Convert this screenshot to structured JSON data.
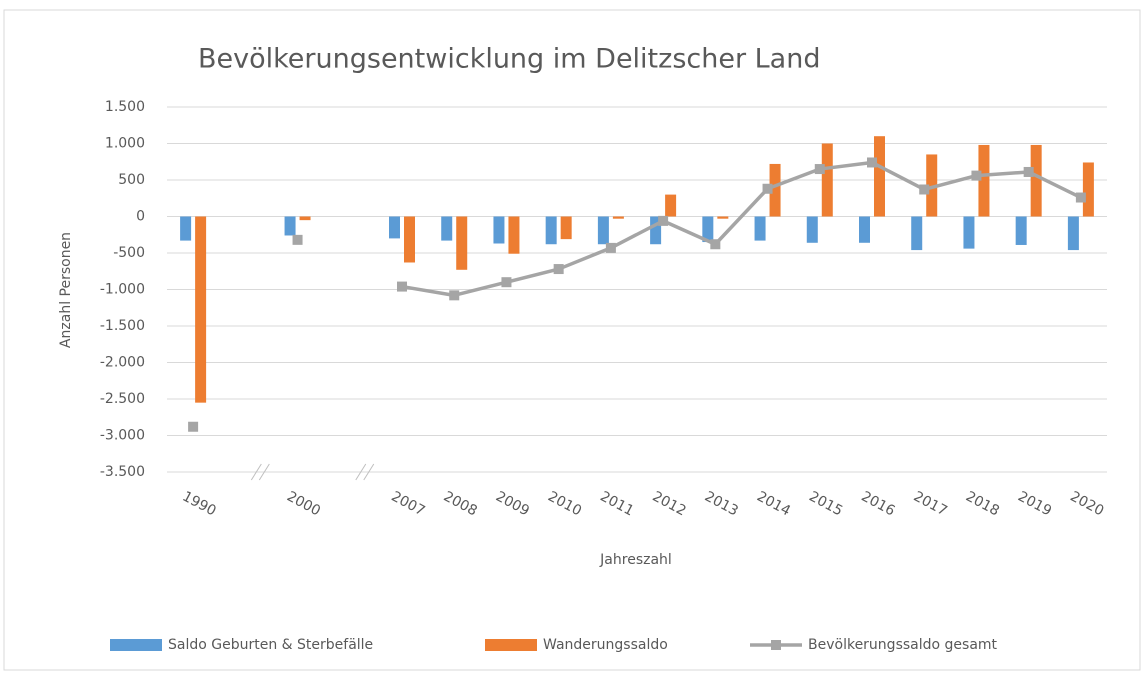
{
  "chart_data": {
    "type": "bar_line",
    "title": "Bevölkerungsentwicklung im Delitzscher Land",
    "x_label": "Jahreszahl",
    "y_label": "Anzahl Personen",
    "categories": [
      "1990",
      null,
      "2000",
      null,
      "2007",
      "2008",
      "2009",
      "2010",
      "2011",
      "2012",
      "2013",
      "2014",
      "2015",
      "2016",
      "2017",
      "2018",
      "2019",
      "2020"
    ],
    "series": [
      {
        "name": "Saldo Geburten & Sterbefälle",
        "type": "bar",
        "color": "#5b9bd5",
        "values": [
          -330,
          null,
          -260,
          null,
          -300,
          -330,
          -370,
          -380,
          -380,
          -380,
          -350,
          -330,
          -360,
          -360,
          -460,
          -440,
          -390,
          -460
        ]
      },
      {
        "name": "Wanderungssaldo",
        "type": "bar",
        "color": "#ed7d31",
        "values": [
          -2550,
          null,
          -50,
          null,
          -630,
          -730,
          -510,
          -310,
          -30,
          300,
          -30,
          720,
          1000,
          1100,
          850,
          980,
          980,
          740
        ]
      },
      {
        "name": "Bevölkerungssaldo gesamt",
        "type": "line",
        "color": "#a5a5a5",
        "values": [
          -2880,
          null,
          -320,
          null,
          -960,
          -1080,
          -900,
          -720,
          -430,
          -60,
          -380,
          380,
          650,
          740,
          370,
          560,
          610,
          260
        ]
      }
    ],
    "ylim": [
      -3500,
      1500
    ],
    "yticks": [
      {
        "value": -3500,
        "label": "-3.500"
      },
      {
        "value": -3000,
        "label": "-3.000"
      },
      {
        "value": -2500,
        "label": "-2.500"
      },
      {
        "value": -2000,
        "label": "-2.000"
      },
      {
        "value": -1500,
        "label": "-1.500"
      },
      {
        "value": -1000,
        "label": "-1.000"
      },
      -500,
      0,
      500,
      {
        "value": 1000,
        "label": "1.000"
      },
      {
        "value": 1500,
        "label": "1.500"
      }
    ],
    "grid": true,
    "legend": "bottom"
  }
}
